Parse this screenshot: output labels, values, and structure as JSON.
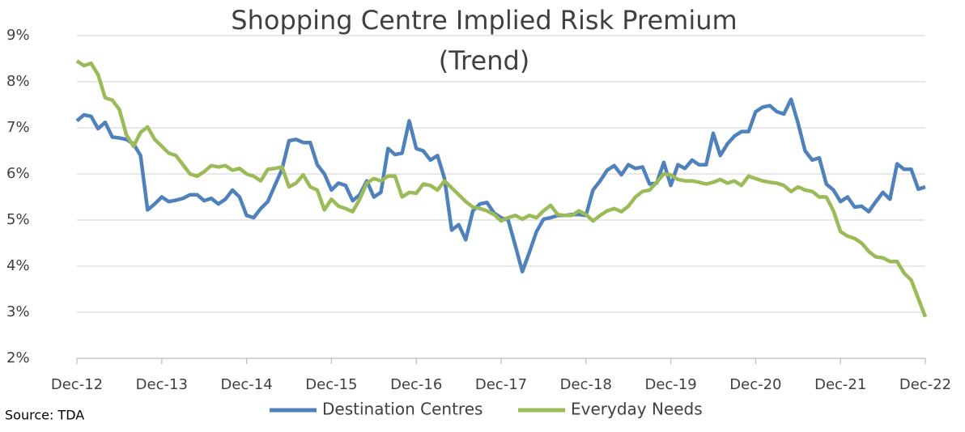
{
  "chart_data": {
    "type": "line",
    "title": "Shopping Centre Implied Risk Premium",
    "subtitle": "(Trend)",
    "source": "Source: TDA",
    "categories": [
      "Dec-12",
      null,
      null,
      null,
      null,
      null,
      null,
      null,
      null,
      null,
      null,
      null,
      "Dec-13",
      null,
      null,
      null,
      null,
      null,
      null,
      null,
      null,
      null,
      null,
      null,
      "Dec-14",
      null,
      null,
      null,
      null,
      null,
      null,
      null,
      null,
      null,
      null,
      null,
      "Dec-15",
      null,
      null,
      null,
      null,
      null,
      null,
      null,
      null,
      null,
      null,
      null,
      "Dec-16",
      null,
      null,
      null,
      null,
      null,
      null,
      null,
      null,
      null,
      null,
      null,
      "Dec-17",
      null,
      null,
      null,
      null,
      null,
      null,
      null,
      null,
      null,
      null,
      null,
      "Dec-18",
      null,
      null,
      null,
      null,
      null,
      null,
      null,
      null,
      null,
      null,
      null,
      "Dec-19",
      null,
      null,
      null,
      null,
      null,
      null,
      null,
      null,
      null,
      null,
      null,
      "Dec-20",
      null,
      null,
      null,
      null,
      null,
      null,
      null,
      null,
      null,
      null,
      null,
      "Dec-21",
      null,
      null,
      null,
      null,
      null,
      null,
      null,
      null,
      null,
      null,
      null,
      "Dec-22"
    ],
    "series": [
      {
        "name": "Destination Centres",
        "color": "#4f81bd",
        "values": [
          7.15,
          7.28,
          7.25,
          6.98,
          7.12,
          6.8,
          6.78,
          6.75,
          6.65,
          6.4,
          5.22,
          5.35,
          5.5,
          5.4,
          5.43,
          5.47,
          5.55,
          5.55,
          5.42,
          5.47,
          5.35,
          5.45,
          5.65,
          5.5,
          5.1,
          5.05,
          5.25,
          5.4,
          5.75,
          6.1,
          6.72,
          6.75,
          6.68,
          6.68,
          6.2,
          6.0,
          5.65,
          5.8,
          5.75,
          5.42,
          5.55,
          5.85,
          5.5,
          5.6,
          6.55,
          6.42,
          6.45,
          7.15,
          6.55,
          6.5,
          6.3,
          6.4,
          5.9,
          4.78,
          4.9,
          4.57,
          5.2,
          5.35,
          5.38,
          5.15,
          5.05,
          5.0,
          4.45,
          3.88,
          4.3,
          4.75,
          5.02,
          5.05,
          5.1,
          5.1,
          5.12,
          5.12,
          5.1,
          5.65,
          5.85,
          6.08,
          6.18,
          5.98,
          6.2,
          6.12,
          6.15,
          5.78,
          5.8,
          6.25,
          5.75,
          6.2,
          6.12,
          6.3,
          6.2,
          6.2,
          6.88,
          6.4,
          6.65,
          6.82,
          6.92,
          6.92,
          7.35,
          7.45,
          7.48,
          7.35,
          7.3,
          7.62,
          7.1,
          6.5,
          6.3,
          6.35,
          5.78,
          5.65,
          5.4,
          5.5,
          5.28,
          5.3,
          5.18,
          5.4,
          5.6,
          5.45,
          6.22,
          6.1,
          6.1,
          5.67,
          5.72
        ]
      },
      {
        "name": "Everyday Needs",
        "color": "#9bbb59",
        "values": [
          8.45,
          8.35,
          8.4,
          8.15,
          7.65,
          7.6,
          7.4,
          6.85,
          6.6,
          6.9,
          7.02,
          6.75,
          6.6,
          6.45,
          6.4,
          6.2,
          6.0,
          5.95,
          6.05,
          6.18,
          6.15,
          6.18,
          6.08,
          6.12,
          6.0,
          5.95,
          5.85,
          6.1,
          6.12,
          6.15,
          5.72,
          5.8,
          5.98,
          5.72,
          5.65,
          5.22,
          5.45,
          5.3,
          5.25,
          5.18,
          5.45,
          5.8,
          5.9,
          5.85,
          5.95,
          5.95,
          5.5,
          5.6,
          5.58,
          5.78,
          5.75,
          5.65,
          5.85,
          5.7,
          5.55,
          5.4,
          5.28,
          5.25,
          5.2,
          5.12,
          4.98,
          5.05,
          5.1,
          5.02,
          5.1,
          5.05,
          5.2,
          5.32,
          5.12,
          5.1,
          5.1,
          5.2,
          5.12,
          4.98,
          5.1,
          5.2,
          5.25,
          5.18,
          5.3,
          5.5,
          5.62,
          5.65,
          5.82,
          6.0,
          5.98,
          5.88,
          5.85,
          5.85,
          5.82,
          5.78,
          5.82,
          5.88,
          5.8,
          5.85,
          5.75,
          5.95,
          5.9,
          5.85,
          5.82,
          5.8,
          5.75,
          5.62,
          5.72,
          5.65,
          5.62,
          5.5,
          5.5,
          5.2,
          4.75,
          4.65,
          4.6,
          4.5,
          4.32,
          4.2,
          4.18,
          4.1,
          4.1,
          3.85,
          3.7,
          3.3,
          2.9
        ]
      }
    ],
    "ylim": [
      2,
      9
    ],
    "yticks": [
      {
        "value": 2,
        "label": "2%"
      },
      {
        "value": 3,
        "label": "3%"
      },
      {
        "value": 4,
        "label": "4%"
      },
      {
        "value": 5,
        "label": "5%"
      },
      {
        "value": 6,
        "label": "6%"
      },
      {
        "value": 7,
        "label": "7%"
      },
      {
        "value": 8,
        "label": "8%"
      },
      {
        "value": 9,
        "label": "9%"
      }
    ],
    "grid": true,
    "legend": "bottom"
  }
}
